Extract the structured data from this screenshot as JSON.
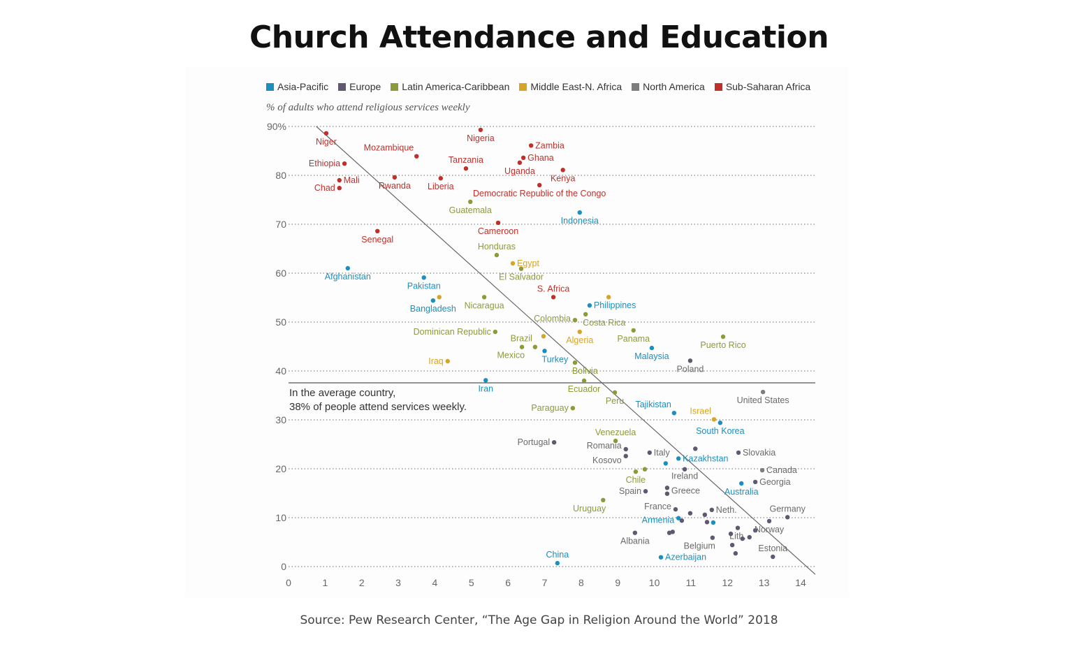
{
  "title": "Church Attendance and Education",
  "source": "Source: Pew Research Center, “The Age Gap in Religion Around the World” 2018",
  "chart_data": {
    "type": "scatter",
    "title": "Church Attendance and Education",
    "ylabel": "% of adults who attend religious services weekly",
    "xlabel": "",
    "xlim": [
      0,
      14.4
    ],
    "ylim": [
      0,
      90
    ],
    "xticks": [
      "0",
      "1",
      "2",
      "3",
      "4",
      "5",
      "6",
      "7",
      "8",
      "9",
      "10",
      "11",
      "12",
      "13",
      "14"
    ],
    "yticks": [
      {
        "v": 90,
        "label": "90%"
      },
      {
        "v": 80,
        "label": "80"
      },
      {
        "v": 70,
        "label": "70"
      },
      {
        "v": 60,
        "label": "60"
      },
      {
        "v": 50,
        "label": "50"
      },
      {
        "v": 40,
        "label": "40"
      },
      {
        "v": 30,
        "label": "30"
      },
      {
        "v": 20,
        "label": "20"
      },
      {
        "v": 10,
        "label": "10"
      },
      {
        "v": 0,
        "label": "0"
      }
    ],
    "grid": "horizontal dotted",
    "legend_position": "top",
    "regions": [
      {
        "name": "Asia-Pacific",
        "color": "#1a8fc0"
      },
      {
        "name": "Europe",
        "color": "#5f5870"
      },
      {
        "name": "Latin America-Caribbean",
        "color": "#8c9a3a"
      },
      {
        "name": "Middle East-N. Africa",
        "color": "#d6a526"
      },
      {
        "name": "North America",
        "color": "#7d7d7d"
      },
      {
        "name": "Sub-Saharan Africa",
        "color": "#c0302a"
      }
    ],
    "average": {
      "y": 38,
      "text_line1": "In the average country,",
      "text_line2": "38% of people attend services weekly."
    },
    "trendline": [
      {
        "x": 0.76,
        "y": 90
      },
      {
        "x": 14.4,
        "y": -1.6
      }
    ],
    "points": [
      {
        "country": "Niger",
        "region": "Sub-Saharan Africa",
        "x": 1.03,
        "y": 88.6
      },
      {
        "country": "Nigeria",
        "region": "Sub-Saharan Africa",
        "x": 5.25,
        "y": 89.3
      },
      {
        "country": "Mozambique",
        "region": "Sub-Saharan Africa",
        "x": 3.5,
        "y": 83.9
      },
      {
        "country": "Ethiopia",
        "region": "Sub-Saharan Africa",
        "x": 1.53,
        "y": 82.4
      },
      {
        "country": "Zambia",
        "region": "Sub-Saharan Africa",
        "x": 6.63,
        "y": 86.1
      },
      {
        "country": "Ghana",
        "region": "Sub-Saharan Africa",
        "x": 6.42,
        "y": 83.6
      },
      {
        "country": "Uganda",
        "region": "Sub-Saharan Africa",
        "x": 6.32,
        "y": 82.6
      },
      {
        "country": "Tanzania",
        "region": "Sub-Saharan Africa",
        "x": 4.85,
        "y": 81.4
      },
      {
        "country": "Kenya",
        "region": "Sub-Saharan Africa",
        "x": 7.5,
        "y": 81.1
      },
      {
        "country": "Mali",
        "region": "Sub-Saharan Africa",
        "x": 1.39,
        "y": 79.0
      },
      {
        "country": "Rwanda",
        "region": "Sub-Saharan Africa",
        "x": 2.9,
        "y": 79.6
      },
      {
        "country": "Liberia",
        "region": "Sub-Saharan Africa",
        "x": 4.16,
        "y": 79.4
      },
      {
        "country": "Chad",
        "region": "Sub-Saharan Africa",
        "x": 1.39,
        "y": 77.4
      },
      {
        "country": "Democratic Republic of the Congo",
        "region": "Sub-Saharan Africa",
        "x": 6.86,
        "y": 78.0
      },
      {
        "country": "Cameroon",
        "region": "Sub-Saharan Africa",
        "x": 5.73,
        "y": 70.3
      },
      {
        "country": "Senegal",
        "region": "Sub-Saharan Africa",
        "x": 2.43,
        "y": 68.6
      },
      {
        "country": "S. Africa",
        "region": "Sub-Saharan Africa",
        "x": 7.24,
        "y": 55.1
      },
      {
        "country": "Guatemala",
        "region": "Latin America-Caribbean",
        "x": 4.97,
        "y": 74.6
      },
      {
        "country": "Honduras",
        "region": "Latin America-Caribbean",
        "x": 5.69,
        "y": 63.7
      },
      {
        "country": "El Salvador",
        "region": "Latin America-Caribbean",
        "x": 6.36,
        "y": 60.9
      },
      {
        "country": "Nicaragua",
        "region": "Latin America-Caribbean",
        "x": 5.35,
        "y": 55.1
      },
      {
        "country": "Colombia",
        "region": "Latin America-Caribbean",
        "x": 7.83,
        "y": 50.4
      },
      {
        "country": "Costa Rica",
        "region": "Latin America-Caribbean",
        "x": 8.12,
        "y": 51.6
      },
      {
        "country": "Dominican Republic",
        "region": "Latin America-Caribbean",
        "x": 5.65,
        "y": 48.0
      },
      {
        "country": "Panama",
        "region": "Latin America-Caribbean",
        "x": 9.43,
        "y": 48.3
      },
      {
        "country": "Puerto Rico",
        "region": "Latin America-Caribbean",
        "x": 11.88,
        "y": 47.0
      },
      {
        "country": "Brazil",
        "region": "Latin America-Caribbean",
        "x": 6.74,
        "y": 44.9
      },
      {
        "country": "Mexico",
        "region": "Latin America-Caribbean",
        "x": 6.38,
        "y": 44.9
      },
      {
        "country": "Bolivia",
        "region": "Latin America-Caribbean",
        "x": 7.83,
        "y": 41.7
      },
      {
        "country": "Ecuador",
        "region": "Latin America-Caribbean",
        "x": 8.08,
        "y": 38.0
      },
      {
        "country": "Peru",
        "region": "Latin America-Caribbean",
        "x": 8.92,
        "y": 35.6
      },
      {
        "country": "Paraguay",
        "region": "Latin America-Caribbean",
        "x": 7.77,
        "y": 32.4
      },
      {
        "country": "Venezuela",
        "region": "Latin America-Caribbean",
        "x": 8.94,
        "y": 25.7
      },
      {
        "country": "Chile",
        "region": "Latin America-Caribbean",
        "x": 9.49,
        "y": 19.4
      },
      {
        "country": "",
        "region": "Latin America-Caribbean",
        "x": 9.74,
        "y": 19.9
      },
      {
        "country": "Uruguay",
        "region": "Latin America-Caribbean",
        "x": 8.6,
        "y": 13.6
      },
      {
        "country": "Egypt",
        "region": "Middle East-N. Africa",
        "x": 6.13,
        "y": 62.0
      },
      {
        "country": "Iraq",
        "region": "Middle East-N. Africa",
        "x": 4.35,
        "y": 42.0
      },
      {
        "country": "Algeria",
        "region": "Middle East-N. Africa",
        "x": 7.96,
        "y": 48.0
      },
      {
        "country": "Israel",
        "region": "Middle East-N. Africa",
        "x": 11.63,
        "y": 30.1
      },
      {
        "country": "",
        "region": "Middle East-N. Africa",
        "x": 8.75,
        "y": 55.1
      },
      {
        "country": "",
        "region": "Middle East-N. Africa",
        "x": 4.12,
        "y": 55.1
      },
      {
        "country": "",
        "region": "Middle East-N. Africa",
        "x": 6.97,
        "y": 47.1
      },
      {
        "country": "Indonesia",
        "region": "Asia-Pacific",
        "x": 7.96,
        "y": 72.4
      },
      {
        "country": "Afghanistan",
        "region": "Asia-Pacific",
        "x": 1.62,
        "y": 61.0
      },
      {
        "country": "Pakistan",
        "region": "Asia-Pacific",
        "x": 3.7,
        "y": 59.1
      },
      {
        "country": "Bangladesh",
        "region": "Asia-Pacific",
        "x": 3.95,
        "y": 54.4
      },
      {
        "country": "Philippines",
        "region": "Asia-Pacific",
        "x": 8.23,
        "y": 53.4
      },
      {
        "country": "Turkey",
        "region": "Asia-Pacific",
        "x": 7.0,
        "y": 44.1
      },
      {
        "country": "Malaysia",
        "region": "Asia-Pacific",
        "x": 9.93,
        "y": 44.7
      },
      {
        "country": "Iran",
        "region": "Asia-Pacific",
        "x": 5.39,
        "y": 38.1
      },
      {
        "country": "Tajikistan",
        "region": "Asia-Pacific",
        "x": 10.54,
        "y": 31.4
      },
      {
        "country": "South Korea",
        "region": "Asia-Pacific",
        "x": 11.8,
        "y": 29.4
      },
      {
        "country": "Kazakhstan",
        "region": "Asia-Pacific",
        "x": 10.66,
        "y": 22.1
      },
      {
        "country": "",
        "region": "Asia-Pacific",
        "x": 10.31,
        "y": 21.1
      },
      {
        "country": "Australia",
        "region": "Asia-Pacific",
        "x": 12.38,
        "y": 17.0
      },
      {
        "country": "Armenia",
        "region": "Asia-Pacific",
        "x": 10.66,
        "y": 9.9
      },
      {
        "country": "",
        "region": "Asia-Pacific",
        "x": 11.61,
        "y": 9.0
      },
      {
        "country": "Azerbaijan",
        "region": "Asia-Pacific",
        "x": 10.18,
        "y": 1.9
      },
      {
        "country": "China",
        "region": "Asia-Pacific",
        "x": 7.35,
        "y": 0.7
      },
      {
        "country": "Poland",
        "region": "Europe",
        "x": 10.98,
        "y": 42.1
      },
      {
        "country": "Portugal",
        "region": "Europe",
        "x": 7.26,
        "y": 25.4
      },
      {
        "country": "Romania",
        "region": "Europe",
        "x": 9.22,
        "y": 24.0
      },
      {
        "country": "Kosovo",
        "region": "Europe",
        "x": 9.22,
        "y": 22.6
      },
      {
        "country": "Italy",
        "region": "Europe",
        "x": 9.87,
        "y": 23.3
      },
      {
        "country": "",
        "region": "Europe",
        "x": 11.12,
        "y": 24.1
      },
      {
        "country": "Slovakia",
        "region": "Europe",
        "x": 12.3,
        "y": 23.3
      },
      {
        "country": "Ireland",
        "region": "Europe",
        "x": 10.83,
        "y": 19.9
      },
      {
        "country": "Georgia",
        "region": "Europe",
        "x": 12.76,
        "y": 17.3
      },
      {
        "country": "Greece",
        "region": "Europe",
        "x": 10.35,
        "y": 16.1
      },
      {
        "country": "",
        "region": "Europe",
        "x": 10.35,
        "y": 14.9
      },
      {
        "country": "Spain",
        "region": "Europe",
        "x": 9.76,
        "y": 15.4
      },
      {
        "country": "France",
        "region": "Europe",
        "x": 10.58,
        "y": 11.7
      },
      {
        "country": "",
        "region": "Europe",
        "x": 10.98,
        "y": 10.9
      },
      {
        "country": "",
        "region": "Europe",
        "x": 11.38,
        "y": 10.6
      },
      {
        "country": "Neth.",
        "region": "Europe",
        "x": 11.57,
        "y": 11.6
      },
      {
        "country": "",
        "region": "Europe",
        "x": 11.44,
        "y": 9.1
      },
      {
        "country": "",
        "region": "Europe",
        "x": 10.75,
        "y": 9.4
      },
      {
        "country": "Lith.",
        "region": "Europe",
        "x": 12.28,
        "y": 7.9
      },
      {
        "country": "",
        "region": "Europe",
        "x": 12.76,
        "y": 7.4
      },
      {
        "country": "Norway",
        "region": "Europe",
        "x": 13.14,
        "y": 9.3
      },
      {
        "country": "Germany",
        "region": "Europe",
        "x": 13.64,
        "y": 10.1
      },
      {
        "country": "Albania",
        "region": "Europe",
        "x": 9.47,
        "y": 6.9
      },
      {
        "country": "",
        "region": "Europe",
        "x": 10.41,
        "y": 6.9
      },
      {
        "country": "",
        "region": "Europe",
        "x": 10.5,
        "y": 7.1
      },
      {
        "country": "Belgium",
        "region": "Europe",
        "x": 11.59,
        "y": 5.9
      },
      {
        "country": "",
        "region": "Europe",
        "x": 12.09,
        "y": 6.7
      },
      {
        "country": "",
        "region": "Europe",
        "x": 12.41,
        "y": 5.7
      },
      {
        "country": "",
        "region": "Europe",
        "x": 12.6,
        "y": 6.0
      },
      {
        "country": "",
        "region": "Europe",
        "x": 12.13,
        "y": 4.4
      },
      {
        "country": "",
        "region": "Europe",
        "x": 12.22,
        "y": 2.7
      },
      {
        "country": "Estonia",
        "region": "Europe",
        "x": 13.24,
        "y": 2.0
      },
      {
        "country": "Canada",
        "region": "North America",
        "x": 12.95,
        "y": 19.7
      },
      {
        "country": "United States",
        "region": "North America",
        "x": 12.97,
        "y": 35.7
      }
    ]
  }
}
